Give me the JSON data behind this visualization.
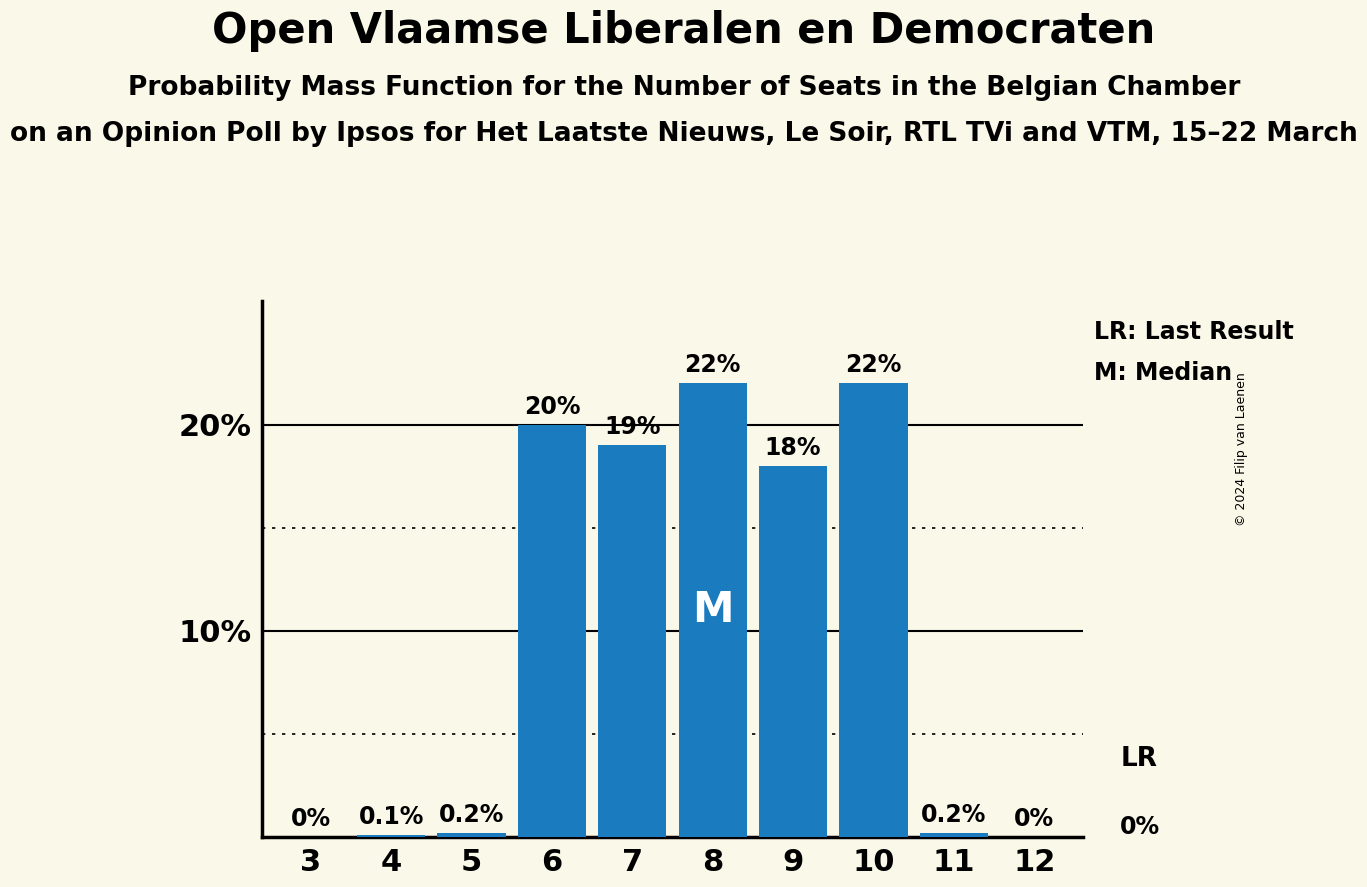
{
  "title": "Open Vlaamse Liberalen en Democraten",
  "subtitle1": "Probability Mass Function for the Number of Seats in the Belgian Chamber",
  "subtitle2": "on an Opinion Poll by Ipsos for Het Laatste Nieuws, Le Soir, RTL TVi and VTM, 15–22 March",
  "copyright": "© 2024 Filip van Laenen",
  "categories": [
    3,
    4,
    5,
    6,
    7,
    8,
    9,
    10,
    11,
    12
  ],
  "values": [
    0.0,
    0.1,
    0.2,
    20.0,
    19.0,
    22.0,
    18.0,
    22.0,
    0.2,
    0.0
  ],
  "bar_color": "#1a7bbf",
  "background_color": "#faf8e8",
  "median_seat": 8,
  "lr_seat": 12,
  "ylabel_ticks": [
    10,
    20
  ],
  "dotted_lines": [
    5,
    15
  ],
  "legend_lr": "LR: Last Result",
  "legend_m": "M: Median",
  "bar_labels": [
    "0%",
    "0.1%",
    "0.2%",
    "20%",
    "19%",
    "22%",
    "18%",
    "22%",
    "0.2%",
    "0%"
  ],
  "ylim": [
    0,
    26
  ],
  "title_fontsize": 30,
  "subtitle1_fontsize": 19,
  "subtitle2_fontsize": 19,
  "bar_label_fontsize": 17,
  "axis_label_fontsize": 22,
  "legend_fontsize": 17
}
